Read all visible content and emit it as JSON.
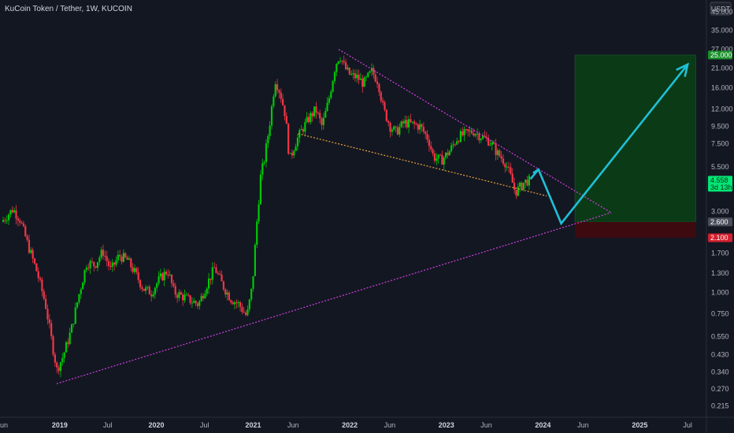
{
  "header": {
    "title": "KuCoin Token / Tether, 1W, KUCOIN"
  },
  "scale": {
    "unit_label": "USDT"
  },
  "colors": {
    "background": "#131722",
    "up": "#00c805",
    "down": "#f23645",
    "wedge": "#d43fe0",
    "support": "#e8a33d",
    "projection": "#1fc0d6",
    "target_zone": "#0b3a17",
    "stop_zone": "#3d0a10"
  },
  "chart_data": {
    "type": "candlestick",
    "title": "KuCoin Token / Tether, 1W, KUCOIN",
    "x_axis": {
      "labels": [
        "un",
        "2019",
        "Jul",
        "2020",
        "Jul",
        "2021",
        "Jun",
        "2022",
        "Jun",
        "2023",
        "Jun",
        "2024",
        "Jun",
        "2025",
        "Jul"
      ],
      "bold_labels": [
        "2019",
        "2020",
        "2021",
        "2022",
        "2023",
        "2024",
        "2025"
      ],
      "range": [
        "2018-06",
        "2025-09"
      ]
    },
    "y_axis": {
      "scale": "log",
      "ticks": [
        "45.000",
        "35.000",
        "27.000",
        "21.000",
        "16.000",
        "12.000",
        "9.500",
        "7.500",
        "5.500",
        "3.000",
        "1.700",
        "1.300",
        "1.000",
        "0.750",
        "0.550",
        "0.430",
        "0.340",
        "0.270",
        "0.215"
      ],
      "range": [
        0.19,
        50
      ]
    },
    "series": [
      {
        "kind": "price",
        "points": [
          [
            "2018-06-01",
            2.6
          ],
          [
            "2018-07-15",
            3.1
          ],
          [
            "2018-08-10",
            2.7
          ],
          [
            "2018-09-10",
            1.9
          ],
          [
            "2018-10-15",
            1.3
          ],
          [
            "2018-11-15",
            0.85
          ],
          [
            "2018-12-10",
            0.5
          ],
          [
            "2018-12-28",
            0.35
          ],
          [
            "2019-01-20",
            0.42
          ],
          [
            "2019-02-20",
            0.6
          ],
          [
            "2019-03-20",
            0.95
          ],
          [
            "2019-04-20",
            1.5
          ],
          [
            "2019-05-20",
            1.45
          ],
          [
            "2019-06-20",
            1.75
          ],
          [
            "2019-07-20",
            1.35
          ],
          [
            "2019-08-20",
            1.65
          ],
          [
            "2019-09-20",
            1.55
          ],
          [
            "2019-10-20",
            1.3
          ],
          [
            "2019-11-20",
            1.05
          ],
          [
            "2019-12-20",
            1.0
          ],
          [
            "2020-01-20",
            1.2
          ],
          [
            "2020-02-20",
            1.35
          ],
          [
            "2020-03-15",
            1.0
          ],
          [
            "2020-04-15",
            0.95
          ],
          [
            "2020-05-15",
            0.9
          ],
          [
            "2020-06-15",
            0.85
          ],
          [
            "2020-07-15",
            1.1
          ],
          [
            "2020-08-15",
            1.4
          ],
          [
            "2020-09-15",
            1.1
          ],
          [
            "2020-10-15",
            0.92
          ],
          [
            "2020-11-15",
            0.85
          ],
          [
            "2020-12-15",
            0.72
          ],
          [
            "2021-01-05",
            1.1
          ],
          [
            "2021-01-20",
            2.4
          ],
          [
            "2021-02-05",
            4.8
          ],
          [
            "2021-02-20",
            6.2
          ],
          [
            "2021-03-10",
            9.5
          ],
          [
            "2021-04-01",
            18.0
          ],
          [
            "2021-04-20",
            15.0
          ],
          [
            "2021-05-10",
            11.0
          ],
          [
            "2021-05-25",
            6.0
          ],
          [
            "2021-06-15",
            7.5
          ],
          [
            "2021-07-10",
            9.0
          ],
          [
            "2021-08-05",
            10.5
          ],
          [
            "2021-09-01",
            12.0
          ],
          [
            "2021-09-25",
            9.5
          ],
          [
            "2021-10-20",
            13.5
          ],
          [
            "2021-11-15",
            22.0
          ],
          [
            "2021-12-01",
            25.0
          ],
          [
            "2021-12-20",
            21.0
          ],
          [
            "2022-01-10",
            19.0
          ],
          [
            "2022-02-05",
            18.5
          ],
          [
            "2022-03-01",
            17.0
          ],
          [
            "2022-04-01",
            20.0
          ],
          [
            "2022-04-25",
            17.5
          ],
          [
            "2022-05-15",
            12.0
          ],
          [
            "2022-06-10",
            9.5
          ],
          [
            "2022-07-01",
            8.8
          ],
          [
            "2022-08-01",
            10.0
          ],
          [
            "2022-09-01",
            9.8
          ],
          [
            "2022-10-01",
            9.5
          ],
          [
            "2022-11-01",
            8.0
          ],
          [
            "2022-11-20",
            6.3
          ],
          [
            "2022-12-20",
            6.0
          ],
          [
            "2023-01-20",
            6.8
          ],
          [
            "2023-02-20",
            8.2
          ],
          [
            "2023-03-20",
            8.6
          ],
          [
            "2023-04-20",
            8.9
          ],
          [
            "2023-05-20",
            8.3
          ],
          [
            "2023-06-20",
            7.8
          ],
          [
            "2023-07-20",
            6.6
          ],
          [
            "2023-08-20",
            5.8
          ],
          [
            "2023-09-10",
            4.7
          ],
          [
            "2023-09-25",
            3.9
          ],
          [
            "2023-10-10",
            4.1
          ],
          [
            "2023-10-25",
            4.4
          ],
          [
            "2023-11-10",
            4.56
          ]
        ]
      }
    ],
    "annotations": {
      "wedge_upper": [
        [
          "2021-11-20",
          27.0
        ],
        [
          "2024-09-15",
          2.95
        ]
      ],
      "wedge_lower": [
        [
          "2018-12-20",
          0.29
        ],
        [
          "2024-09-15",
          2.95
        ]
      ],
      "support_line": [
        [
          "2021-06-20",
          8.6
        ],
        [
          "2024-01-15",
          3.7
        ]
      ],
      "projection_path": [
        [
          "2023-11-25",
          5.05
        ],
        [
          "2023-12-15",
          5.3
        ],
        [
          "2024-03-10",
          2.55
        ],
        [
          "2025-07-01",
          22.0
        ]
      ],
      "projection_arrow_small": [
        [
          "2023-11-15",
          4.65
        ],
        [
          "2023-12-15",
          5.3
        ]
      ],
      "target_zone": {
        "from": "2024-05-01",
        "to": "2025-08-01",
        "low": 2.6,
        "high": 25.0
      },
      "stop_zone": {
        "from": "2024-05-01",
        "to": "2025-08-01",
        "low": 2.1,
        "high": 2.6
      }
    },
    "price_badges": [
      {
        "label": "25.000",
        "value": 25.0,
        "color": "#1b8f2c",
        "text_color": "#ffffff"
      },
      {
        "label": "4.558",
        "sub": "3d 13h",
        "value": 4.558,
        "color": "#00e676",
        "text_color": "#0b2e12"
      },
      {
        "label": "2.600",
        "value": 2.6,
        "color": "#4a4e5a",
        "text_color": "#ffffff"
      },
      {
        "label": "2.100",
        "value": 2.1,
        "color": "#d1202e",
        "text_color": "#ffffff"
      }
    ]
  }
}
